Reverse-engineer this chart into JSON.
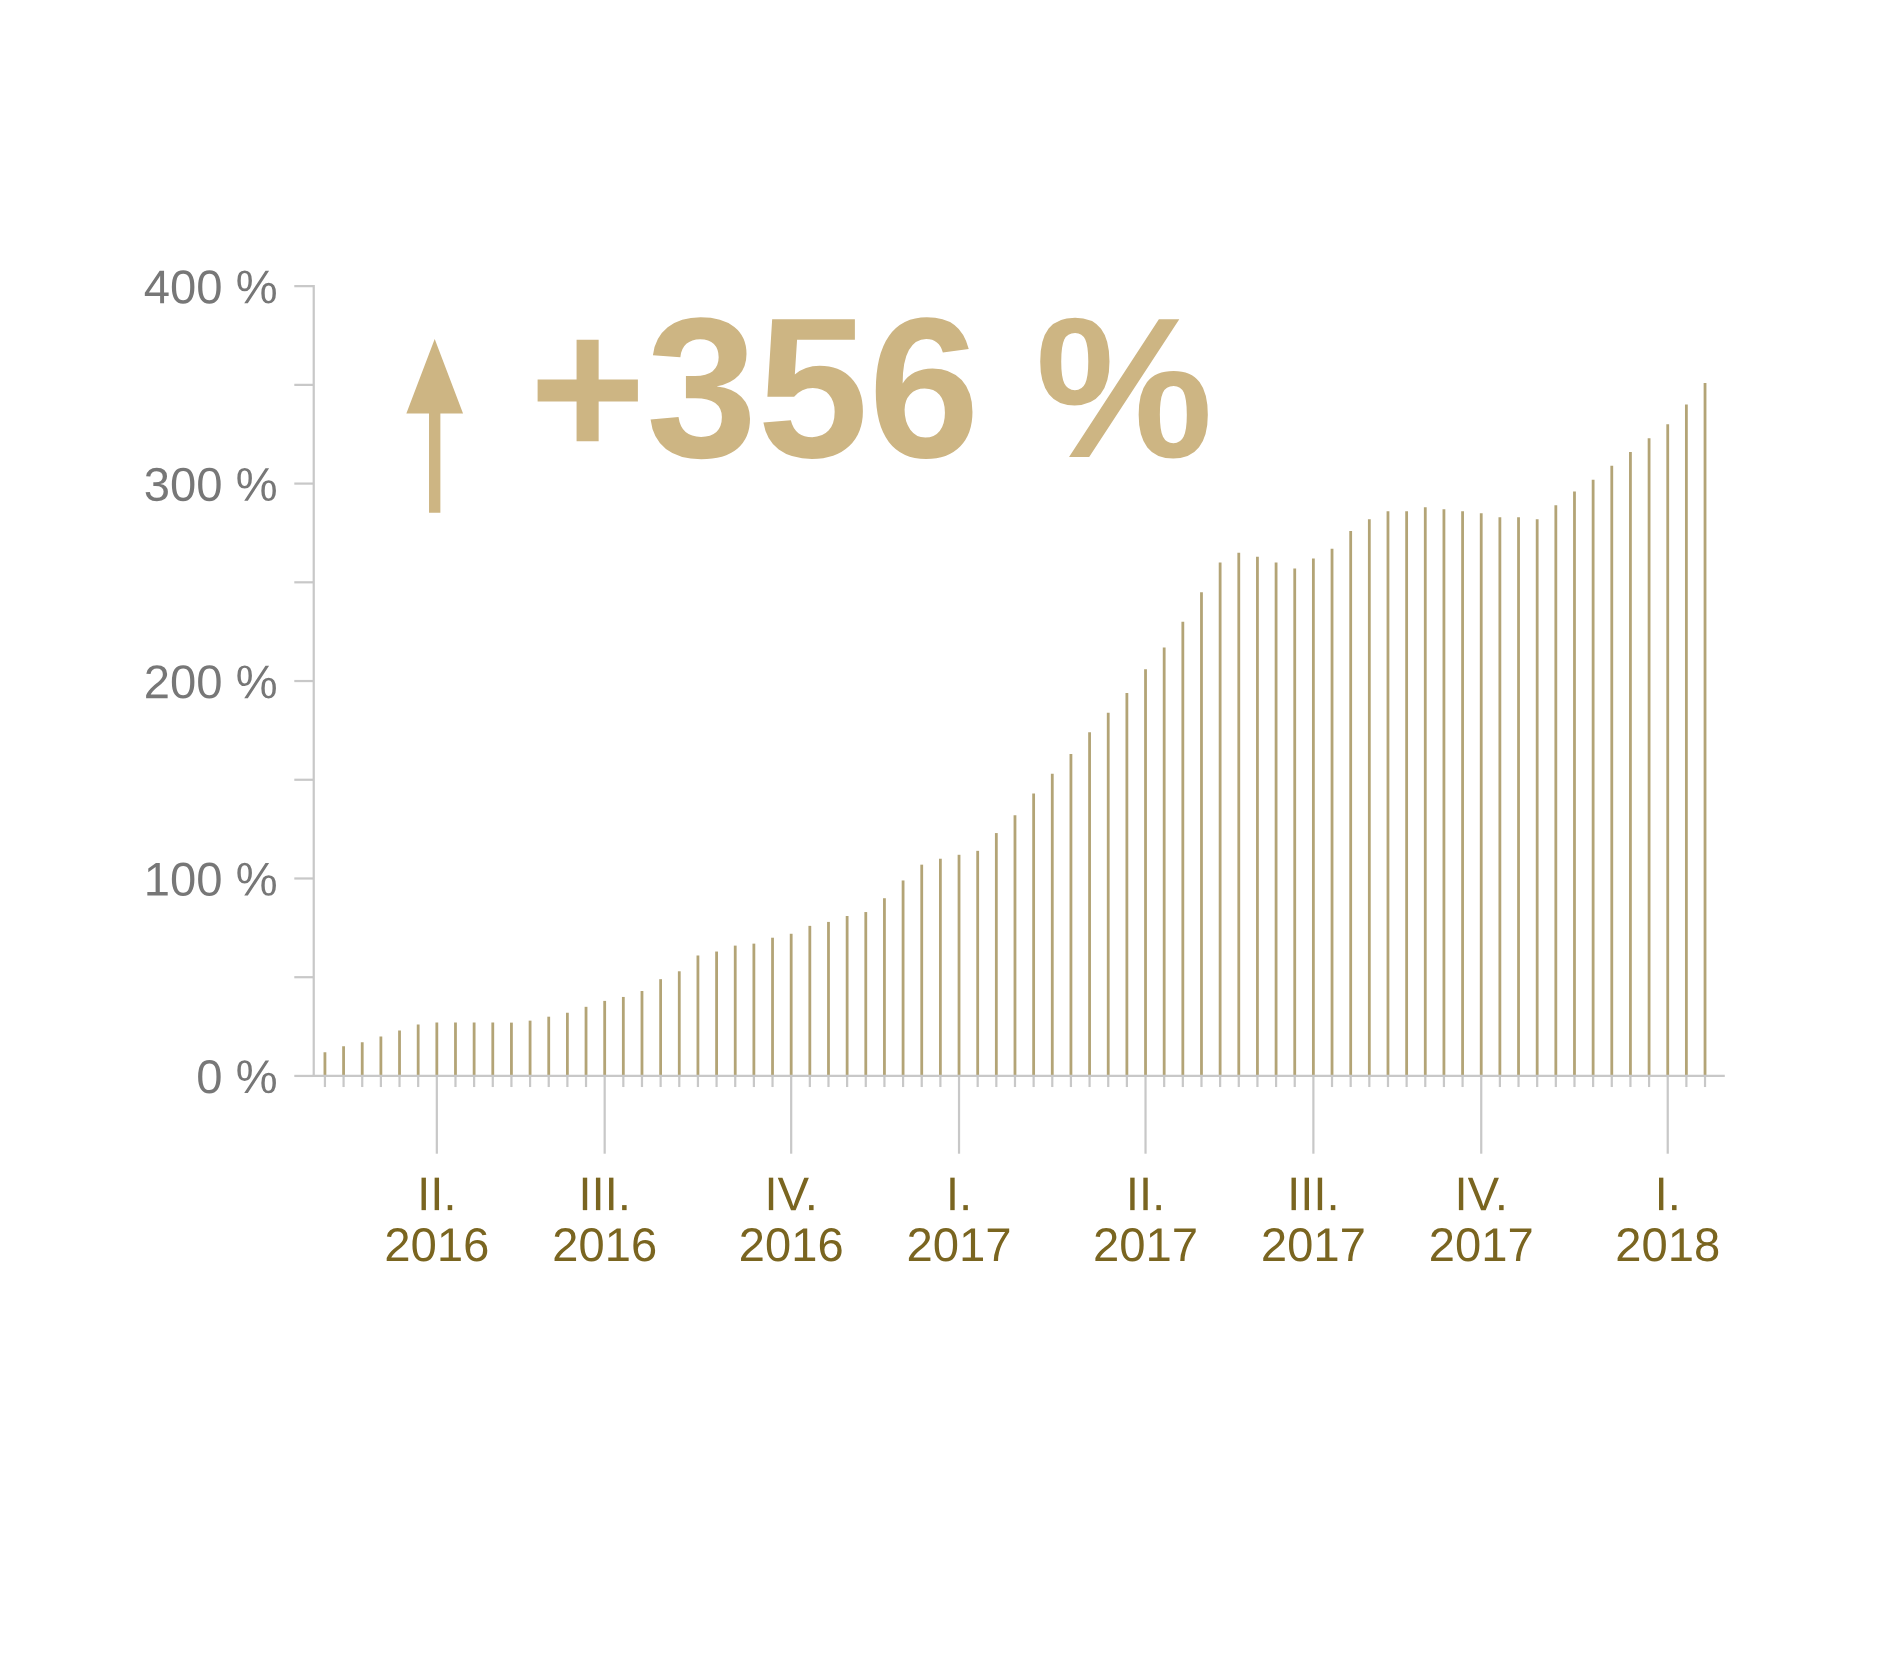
{
  "chart_data": {
    "type": "bar",
    "color": "#b3a476",
    "categories": [
      null,
      null,
      null,
      null,
      null,
      null,
      "II.\n2016",
      null,
      null,
      null,
      null,
      null,
      null,
      null,
      null,
      "III.\n2016",
      null,
      null,
      null,
      null,
      null,
      null,
      null,
      null,
      null,
      "IV.\n2016",
      null,
      null,
      null,
      null,
      null,
      null,
      null,
      null,
      "I.\n2017",
      null,
      null,
      null,
      null,
      null,
      null,
      null,
      null,
      null,
      "II.\n2017",
      null,
      null,
      null,
      null,
      null,
      null,
      null,
      null,
      "III.\n2017",
      null,
      null,
      null,
      null,
      null,
      null,
      null,
      null,
      "IV.\n2017",
      null,
      null,
      null,
      null,
      null,
      null,
      null,
      null,
      null,
      "I.\n2018",
      null,
      null
    ],
    "values": [
      12,
      15,
      17,
      20,
      23,
      26,
      27,
      27,
      27,
      27,
      27,
      28,
      30,
      32,
      35,
      38,
      40,
      43,
      49,
      53,
      61,
      63,
      66,
      67,
      70,
      72,
      76,
      78,
      81,
      83,
      90,
      99,
      107,
      110,
      112,
      114,
      123,
      132,
      143,
      153,
      163,
      174,
      184,
      194,
      206,
      217,
      230,
      245,
      260,
      265,
      263,
      260,
      257,
      262,
      267,
      276,
      282,
      286,
      286,
      288,
      287,
      286,
      285,
      283,
      283,
      282,
      289,
      296,
      302,
      309,
      316,
      323,
      330,
      340,
      351
    ],
    "ylim": [
      0,
      400
    ],
    "yticks": [
      {
        "value": 0,
        "label": "0 %"
      },
      {
        "value": 50,
        "label": null
      },
      {
        "value": 100,
        "label": "100 %"
      },
      {
        "value": 150,
        "label": null
      },
      {
        "value": 200,
        "label": "200 %"
      },
      {
        "value": 250,
        "label": null
      },
      {
        "value": 300,
        "label": "300 %"
      },
      {
        "value": 350,
        "label": null
      },
      {
        "value": 400,
        "label": "400 %"
      }
    ],
    "annotations": [
      "+356 %"
    ],
    "grid": false,
    "legend": false
  }
}
